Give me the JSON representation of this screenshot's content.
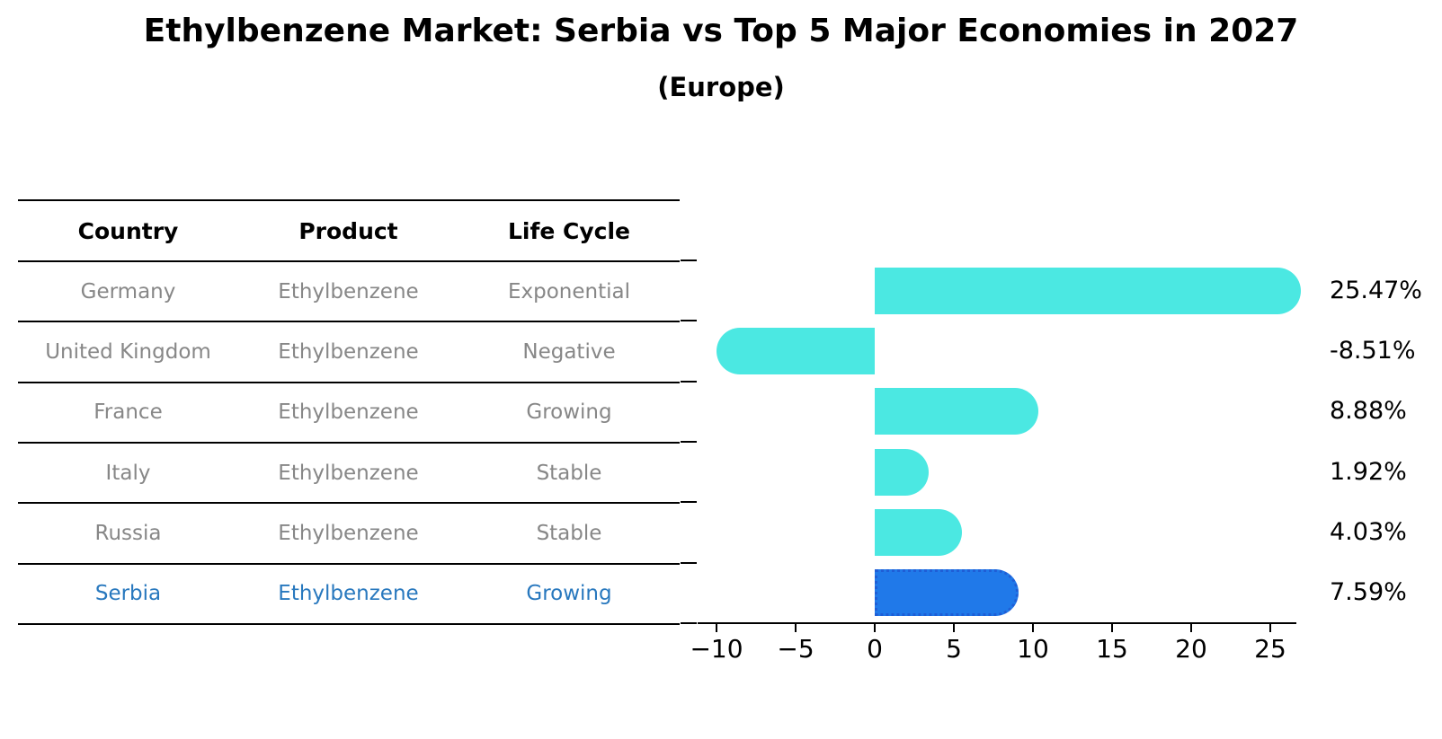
{
  "title": "Ethylbenzene Market: Serbia vs Top 5 Major Economies in 2027",
  "subtitle": "(Europe)",
  "table": {
    "headers": [
      "Country",
      "Product",
      "Life Cycle"
    ],
    "rows": [
      {
        "country": "Germany",
        "product": "Ethylbenzene",
        "life_cycle": "Exponential",
        "highlight": false
      },
      {
        "country": "United Kingdom",
        "product": "Ethylbenzene",
        "life_cycle": "Negative",
        "highlight": false
      },
      {
        "country": "France",
        "product": "Ethylbenzene",
        "life_cycle": "Growing",
        "highlight": false
      },
      {
        "country": "Italy",
        "product": "Ethylbenzene",
        "life_cycle": "Stable",
        "highlight": false
      },
      {
        "country": "Russia",
        "product": "Ethylbenzene",
        "life_cycle": "Stable",
        "highlight": false
      },
      {
        "country": "Serbia",
        "product": "Ethylbenzene",
        "life_cycle": "Growing",
        "highlight": true
      }
    ]
  },
  "chart_data": {
    "type": "bar",
    "orientation": "horizontal",
    "title": "Ethylbenzene Market: Serbia vs Top 5 Major Economies in 2027",
    "subtitle": "(Europe)",
    "categories": [
      "Germany",
      "United Kingdom",
      "France",
      "Italy",
      "Russia",
      "Serbia"
    ],
    "values": [
      25.47,
      -8.51,
      8.88,
      1.92,
      4.03,
      7.59
    ],
    "value_labels": [
      "25.47%",
      "-8.51%",
      "8.88%",
      "1.92%",
      "4.03%",
      "7.59%"
    ],
    "highlight_index": 5,
    "x_ticks": [
      -10,
      -5,
      0,
      5,
      10,
      15,
      20,
      25
    ],
    "x_tick_labels": [
      "−10",
      "−5",
      "0",
      "5",
      "10",
      "15",
      "20",
      "25"
    ],
    "xlim": [
      -11.2,
      26.7
    ],
    "grid": false,
    "legend": "none",
    "bar_color": "#4be8e2",
    "highlight_bar_color": "#2079e9",
    "highlight_border_color": "#1f5ed6",
    "highlight_text_color": "#2878be"
  }
}
